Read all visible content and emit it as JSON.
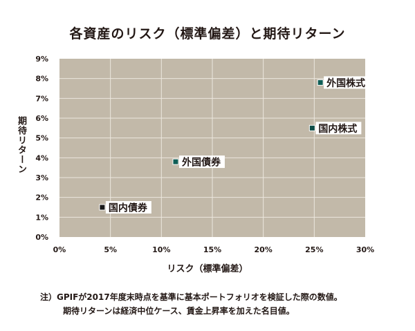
{
  "chart_data": {
    "type": "scatter",
    "title": "各資産のリスク（標準偏差）と期待リターン",
    "xlabel": "リスク（標準偏差）",
    "ylabel": "期待リターン",
    "xlim": [
      0,
      30
    ],
    "ylim": [
      0,
      9
    ],
    "x_ticks": [
      "0%",
      "5%",
      "10%",
      "15%",
      "20%",
      "25%",
      "30%"
    ],
    "y_ticks": [
      "0%",
      "1%",
      "2%",
      "3%",
      "4%",
      "5%",
      "6%",
      "7%",
      "8%",
      "9%"
    ],
    "grid": true,
    "points": [
      {
        "label": "国内債券",
        "x": 4.2,
        "y": 1.5,
        "color": "#1a1a1a"
      },
      {
        "label": "外国債券",
        "x": 11.4,
        "y": 3.8,
        "color": "#0f5e56"
      },
      {
        "label": "国内株式",
        "x": 24.8,
        "y": 5.5,
        "color": "#0f4d47"
      },
      {
        "label": "外国株式",
        "x": 25.6,
        "y": 7.8,
        "color": "#0f5e56"
      }
    ]
  },
  "colors": {
    "plot_bg": "#c2b9a9",
    "grid": "#ece7de",
    "text": "#231815"
  },
  "note": {
    "line1": "注）GPIFが2017年度末時点を基準に基本ポートフォリオを検証した際の数値。",
    "line2": "期待リターンは経済中位ケース、賃金上昇率を加えた名目値。"
  }
}
